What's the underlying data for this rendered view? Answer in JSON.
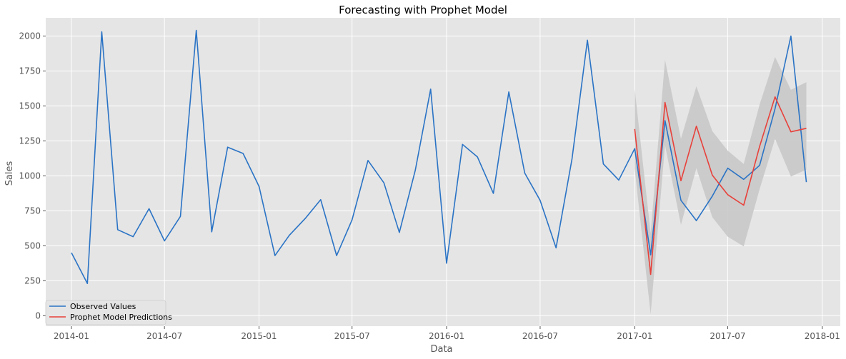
{
  "chart_data": {
    "type": "line",
    "title": "Forecasting with Prophet Model",
    "xlabel": "Data",
    "ylabel": "Sales",
    "x_ticks": [
      "2014-01",
      "2014-07",
      "2015-01",
      "2015-07",
      "2016-01",
      "2016-07",
      "2017-01",
      "2017-07",
      "2018-01"
    ],
    "y_ticks": [
      0,
      250,
      500,
      750,
      1000,
      1250,
      1500,
      1750,
      2000
    ],
    "ylim": [
      -75,
      2130
    ],
    "xlim": [
      "2013-11-12",
      "2018-02-05"
    ],
    "grid": true,
    "legend_position": "lower left",
    "colors": {
      "plot_bg": "#e5e5e5",
      "grid": "#ffffff",
      "observed": "#2a73c5",
      "predicted": "#e8403a",
      "band": "#c8c8c8"
    },
    "series": [
      {
        "name": "Observed Values",
        "color": "#2a73c5",
        "x": [
          "2014-01-01",
          "2014-02-01",
          "2014-03-01",
          "2014-04-01",
          "2014-05-01",
          "2014-06-01",
          "2014-07-01",
          "2014-08-01",
          "2014-09-01",
          "2014-10-01",
          "2014-11-01",
          "2014-12-01",
          "2015-01-01",
          "2015-02-01",
          "2015-03-01",
          "2015-04-01",
          "2015-05-01",
          "2015-06-01",
          "2015-07-01",
          "2015-08-01",
          "2015-09-01",
          "2015-10-01",
          "2015-11-01",
          "2015-12-01",
          "2016-01-01",
          "2016-02-01",
          "2016-03-01",
          "2016-04-01",
          "2016-05-01",
          "2016-06-01",
          "2016-07-01",
          "2016-08-01",
          "2016-09-01",
          "2016-10-01",
          "2016-11-01",
          "2016-12-01",
          "2017-01-01",
          "2017-02-01",
          "2017-03-01",
          "2017-04-01",
          "2017-05-01",
          "2017-06-01",
          "2017-07-01",
          "2017-08-01",
          "2017-09-01",
          "2017-10-01",
          "2017-11-01",
          "2017-12-01"
        ],
        "values": [
          450,
          230,
          2030,
          615,
          565,
          765,
          535,
          710,
          2040,
          600,
          1205,
          1160,
          925,
          430,
          575,
          695,
          830,
          430,
          685,
          1110,
          950,
          595,
          1040,
          1620,
          375,
          1225,
          1135,
          875,
          1600,
          1020,
          825,
          485,
          1120,
          1970,
          1085,
          970,
          1195,
          435,
          1395,
          825,
          680,
          855,
          1055,
          975,
          1075,
          1480,
          2000,
          955
        ]
      },
      {
        "name": "Prophet Model Predictions",
        "color": "#e8403a",
        "x": [
          "2017-01-01",
          "2017-02-01",
          "2017-03-01",
          "2017-04-01",
          "2017-05-01",
          "2017-06-01",
          "2017-07-01",
          "2017-08-01",
          "2017-09-01",
          "2017-10-01",
          "2017-11-01",
          "2017-12-01"
        ],
        "values": [
          1335,
          295,
          1525,
          965,
          1355,
          1005,
          865,
          790,
          1210,
          1565,
          1315,
          1340
        ],
        "lower": [
          1050,
          10,
          1220,
          650,
          1055,
          705,
          565,
          495,
          905,
          1265,
          995,
          1045
        ],
        "upper": [
          1620,
          590,
          1830,
          1265,
          1640,
          1320,
          1180,
          1085,
          1510,
          1850,
          1615,
          1670
        ]
      }
    ]
  }
}
